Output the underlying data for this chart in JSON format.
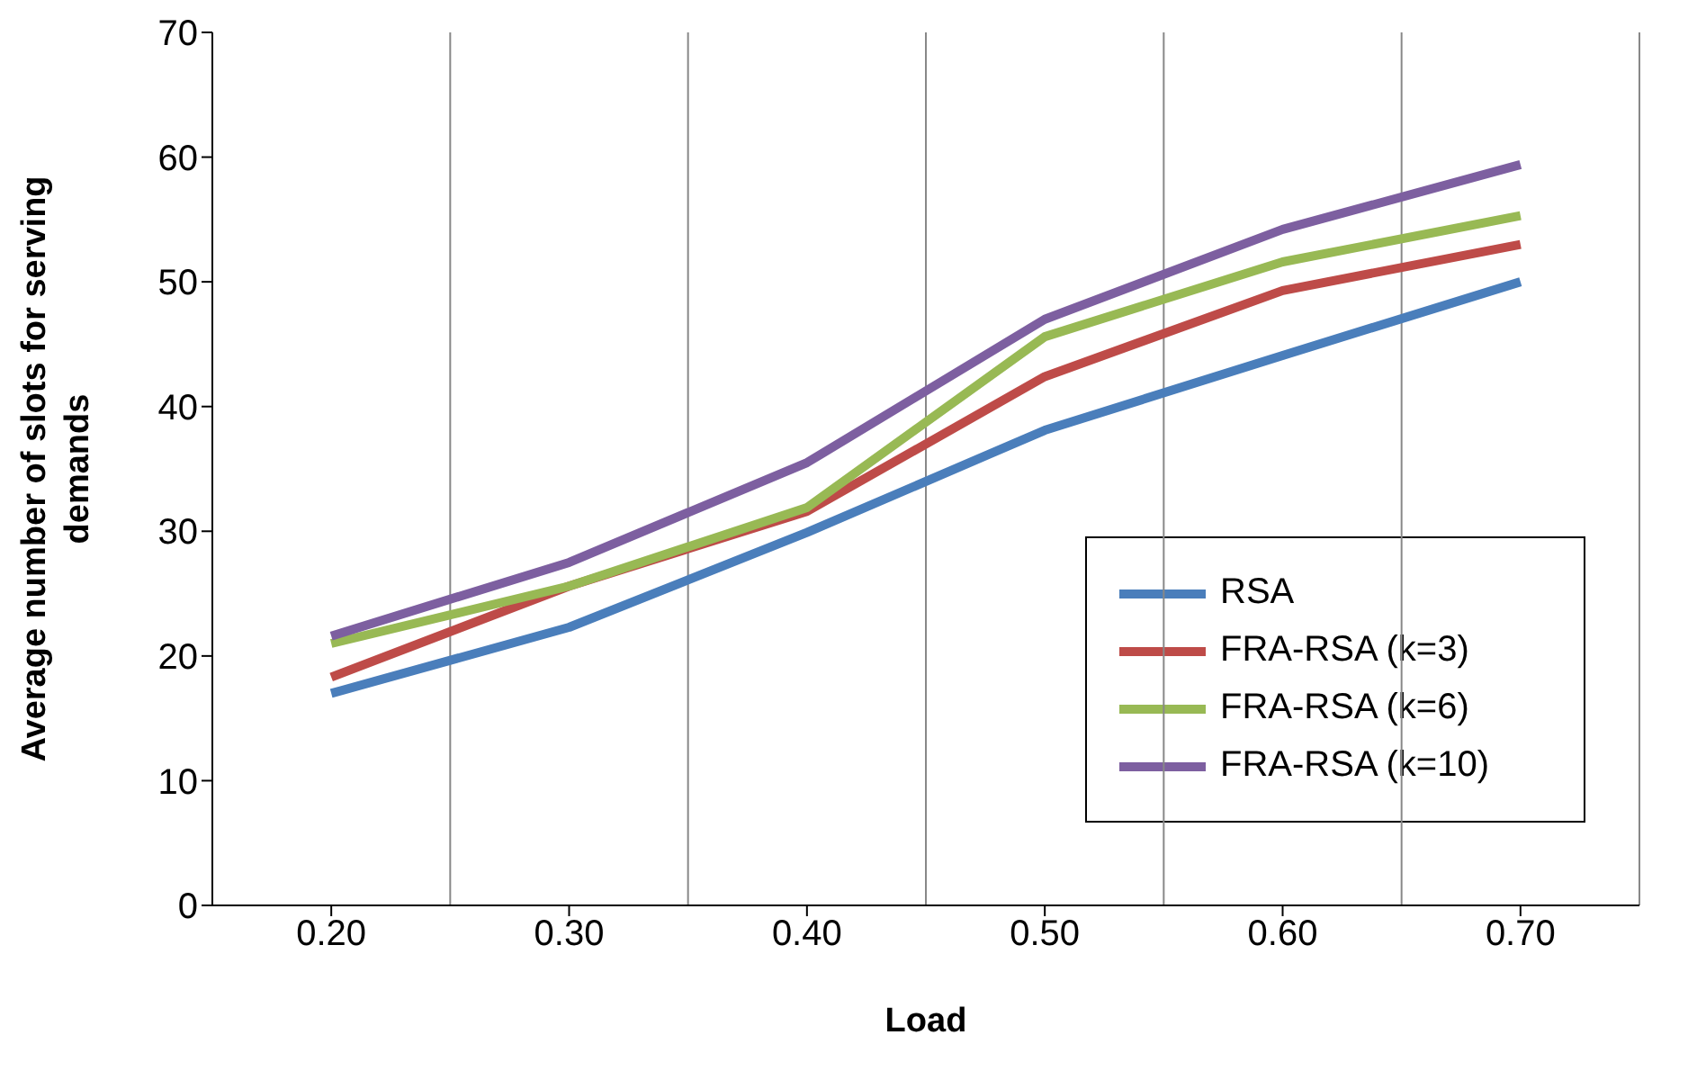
{
  "chart_data": {
    "type": "line",
    "xlabel": "Load",
    "ylabel": "Average number of slots for serving demands",
    "categories": [
      "0.20",
      "0.30",
      "0.40",
      "0.50",
      "0.60",
      "0.70"
    ],
    "series": [
      {
        "name": "RSA",
        "color": "#4a7ebb",
        "values": [
          17.0,
          22.3,
          29.9,
          38.1,
          44.1,
          50.0
        ]
      },
      {
        "name": "FRA-RSA (k=3)",
        "color": "#be4b48",
        "values": [
          18.3,
          25.6,
          31.6,
          42.4,
          49.3,
          53.0
        ]
      },
      {
        "name": "FRA-RSA (k=6)",
        "color": "#98b954",
        "values": [
          21.0,
          25.6,
          31.9,
          45.6,
          51.6,
          55.3
        ]
      },
      {
        "name": "FRA-RSA (k=10)",
        "color": "#7d5fa0",
        "values": [
          21.6,
          27.5,
          35.5,
          47.0,
          54.2,
          59.4
        ]
      }
    ],
    "ylim": [
      0,
      70
    ],
    "yticks": [
      0,
      10,
      20,
      30,
      40,
      50,
      60,
      70
    ],
    "grid": "x",
    "legend": "bottom right",
    "marker": "none",
    "line_style": "solid"
  }
}
